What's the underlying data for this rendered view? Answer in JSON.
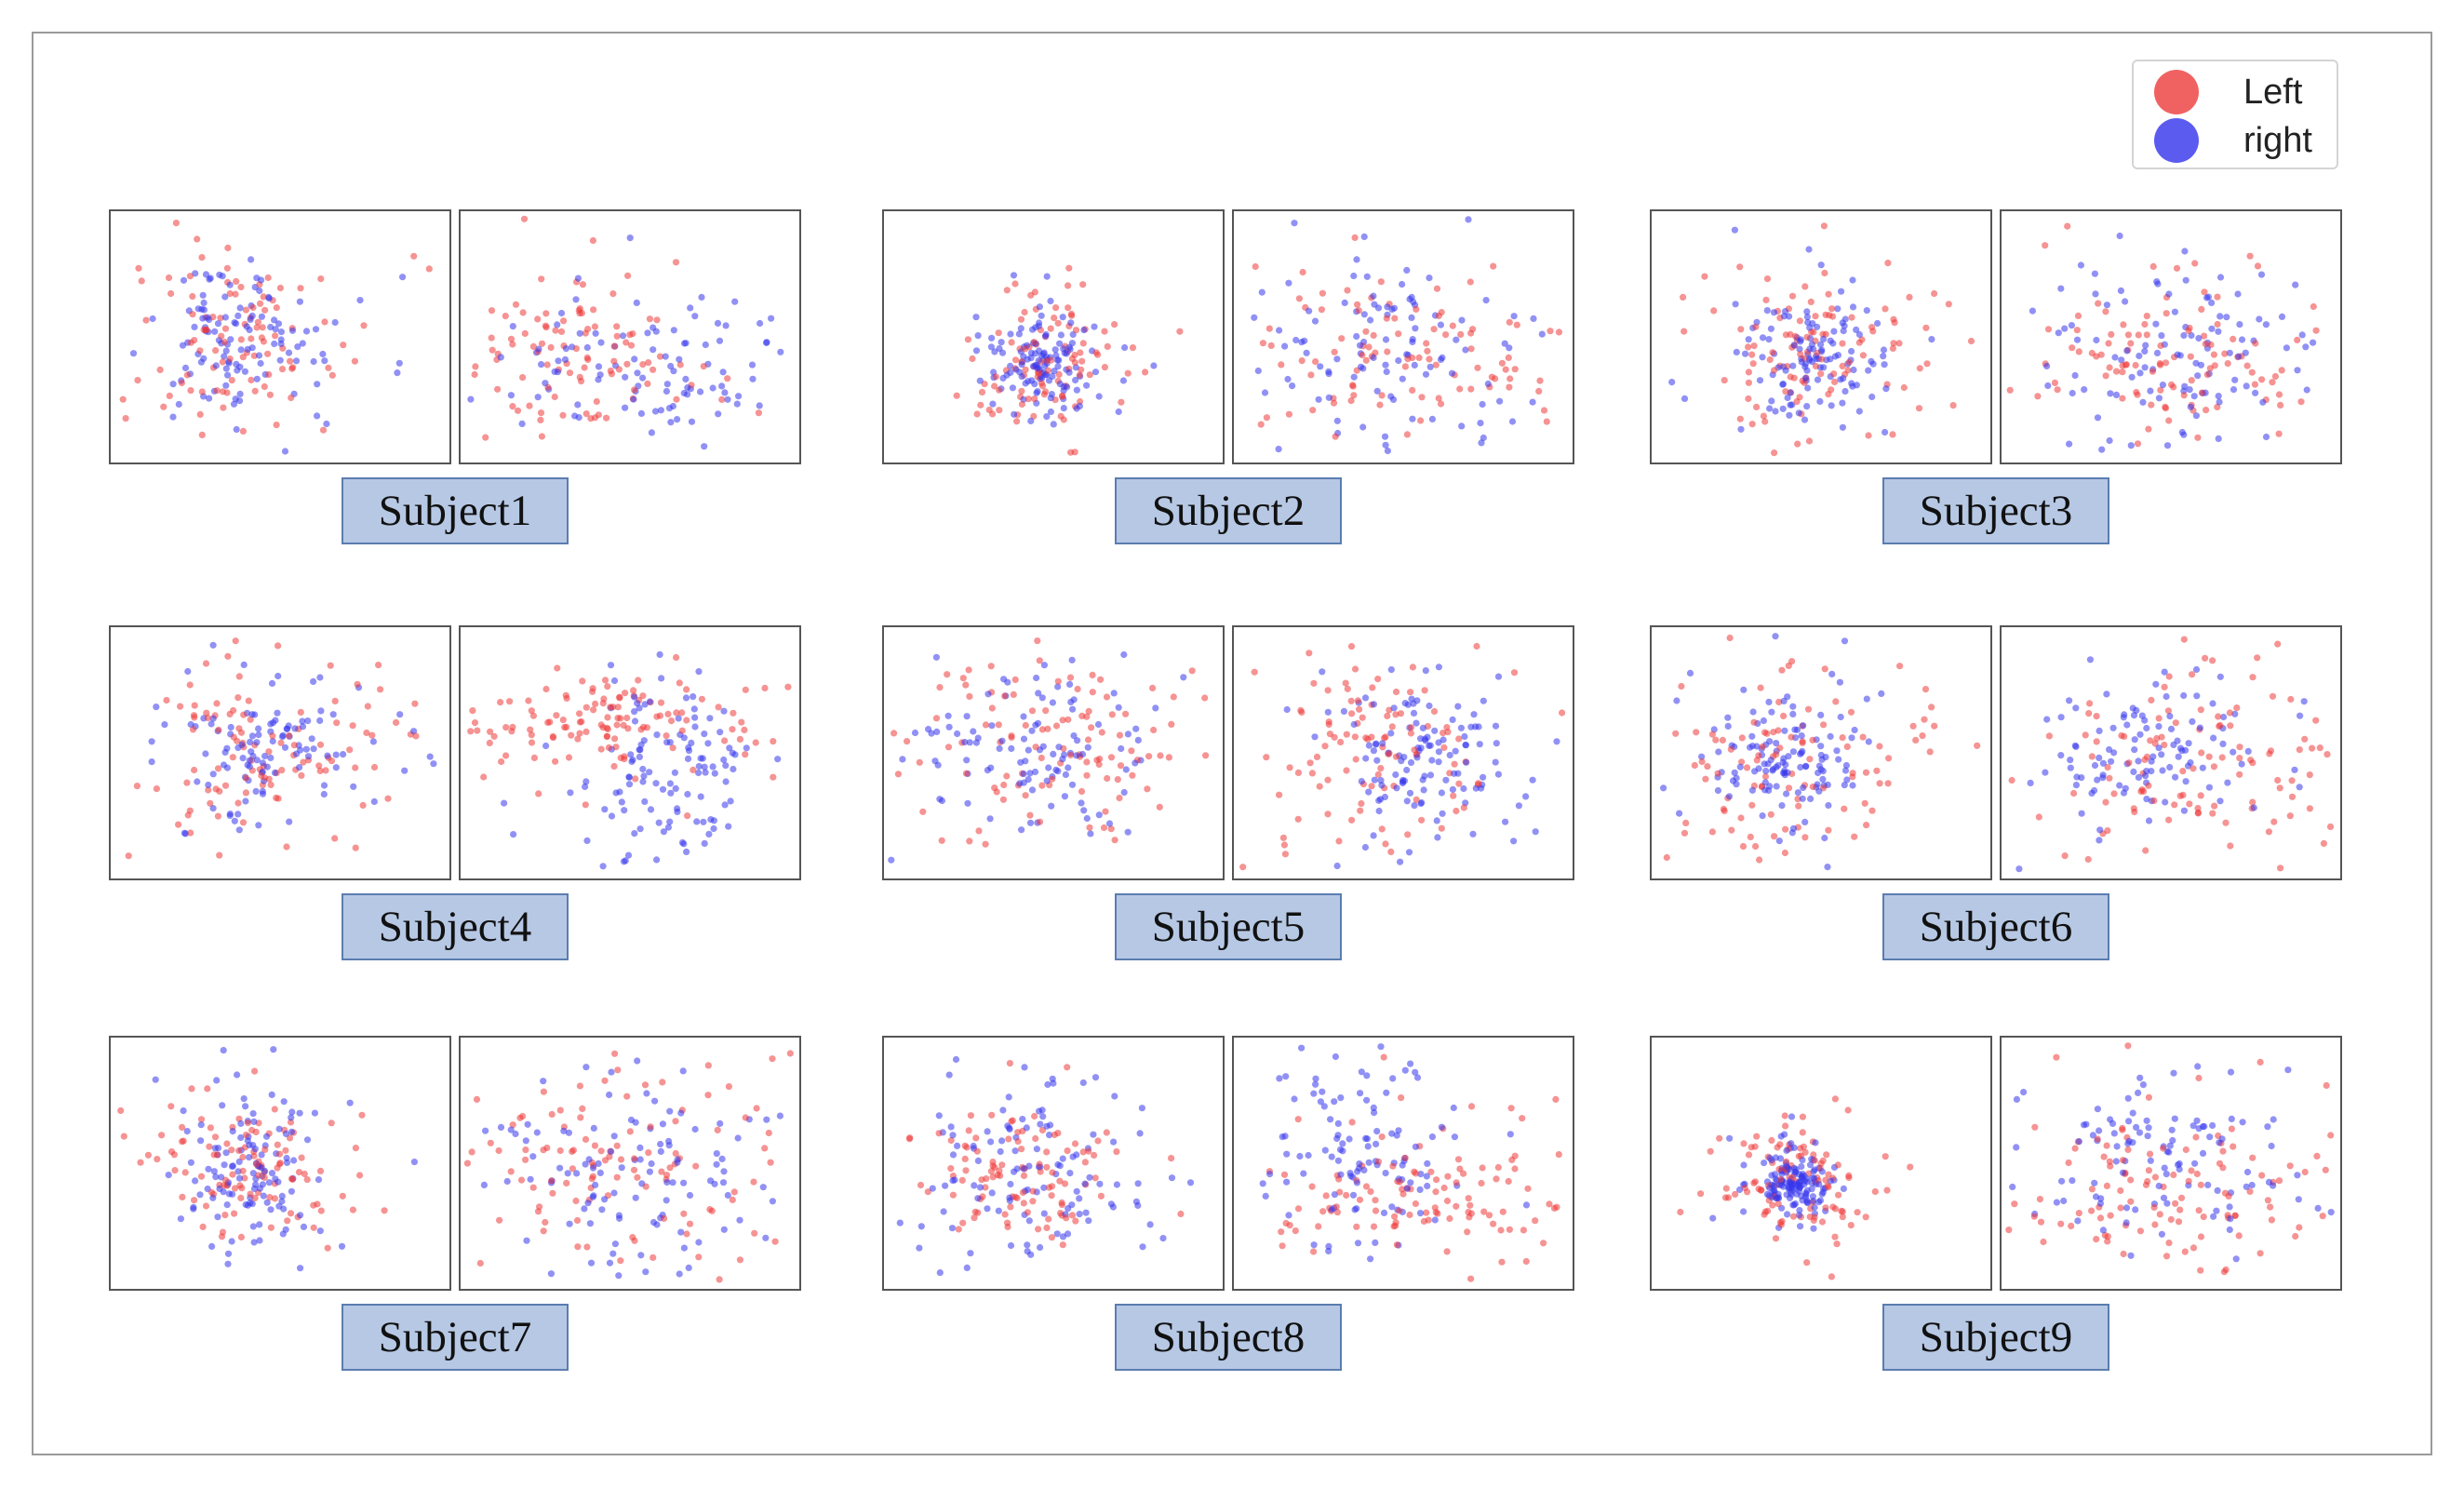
{
  "chart_data": {
    "type": "scatter",
    "legend": {
      "placement": "top-right",
      "entries": [
        {
          "name": "Left",
          "color": "#f06262"
        },
        {
          "name": "right",
          "color": "#5b5bf0"
        }
      ]
    },
    "subjects": [
      {
        "label": "Subject1"
      },
      {
        "label": "Subject2"
      },
      {
        "label": "Subject3"
      },
      {
        "label": "Subject4"
      },
      {
        "label": "Subject5"
      },
      {
        "label": "Subject6"
      },
      {
        "label": "Subject7"
      },
      {
        "label": "Subject8"
      },
      {
        "label": "Subject9"
      }
    ],
    "series_colors": {
      "Left": "#ee3b3b",
      "right": "#3737ec"
    },
    "axes": "hidden",
    "grid": false
  }
}
